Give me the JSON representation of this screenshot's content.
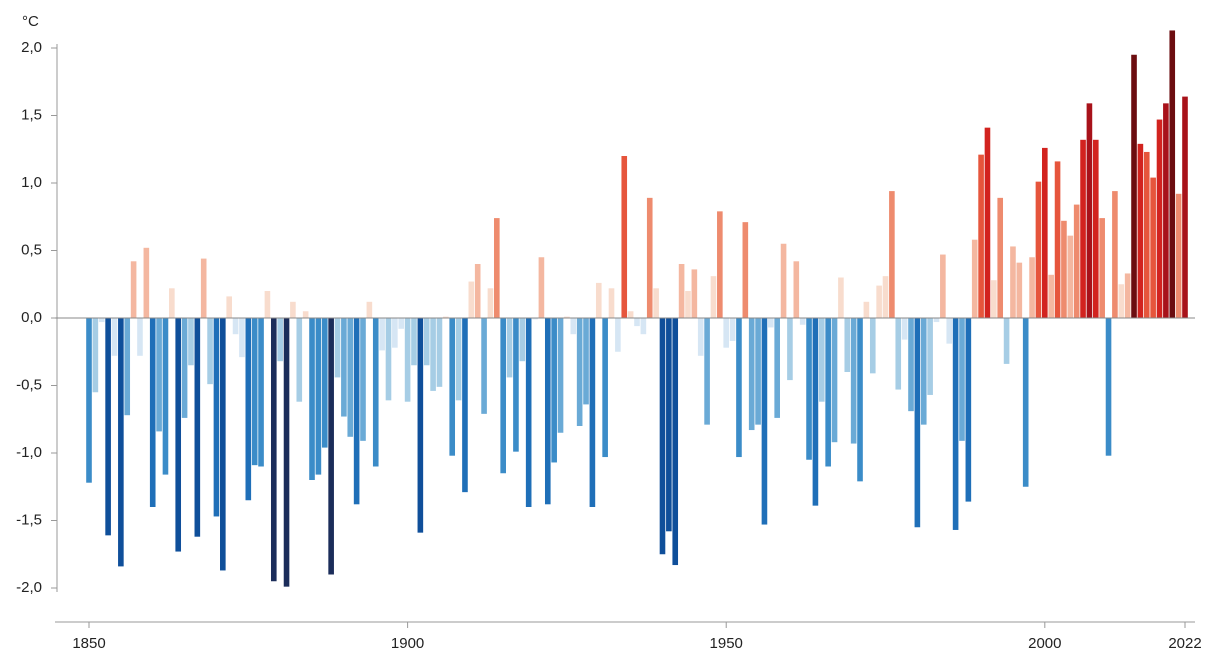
{
  "chart_data": {
    "type": "bar",
    "y_label": "°C",
    "x": [
      1850,
      1851,
      1852,
      1853,
      1854,
      1855,
      1856,
      1857,
      1858,
      1859,
      1860,
      1861,
      1862,
      1863,
      1864,
      1865,
      1866,
      1867,
      1868,
      1869,
      1870,
      1871,
      1872,
      1873,
      1874,
      1875,
      1876,
      1877,
      1878,
      1879,
      1880,
      1881,
      1882,
      1883,
      1884,
      1885,
      1886,
      1887,
      1888,
      1889,
      1890,
      1891,
      1892,
      1893,
      1894,
      1895,
      1896,
      1897,
      1898,
      1899,
      1900,
      1901,
      1902,
      1903,
      1904,
      1905,
      1906,
      1907,
      1908,
      1909,
      1910,
      1911,
      1912,
      1913,
      1914,
      1915,
      1916,
      1917,
      1918,
      1919,
      1920,
      1921,
      1922,
      1923,
      1924,
      1925,
      1926,
      1927,
      1928,
      1929,
      1930,
      1931,
      1932,
      1933,
      1934,
      1935,
      1936,
      1937,
      1938,
      1939,
      1940,
      1941,
      1942,
      1943,
      1944,
      1945,
      1946,
      1947,
      1948,
      1949,
      1950,
      1951,
      1952,
      1953,
      1954,
      1955,
      1956,
      1957,
      1958,
      1959,
      1960,
      1961,
      1962,
      1963,
      1964,
      1965,
      1966,
      1967,
      1968,
      1969,
      1970,
      1971,
      1972,
      1973,
      1974,
      1975,
      1976,
      1977,
      1978,
      1979,
      1980,
      1981,
      1982,
      1983,
      1984,
      1985,
      1986,
      1987,
      1988,
      1989,
      1990,
      1991,
      1992,
      1993,
      1994,
      1995,
      1996,
      1997,
      1998,
      1999,
      2000,
      2001,
      2002,
      2003,
      2004,
      2005,
      2006,
      2007,
      2008,
      2009,
      2010,
      2011,
      2012,
      2013,
      2014,
      2015,
      2016,
      2017,
      2018,
      2019,
      2020,
      2021,
      2022
    ],
    "values": [
      -1.22,
      -0.55,
      -0.03,
      -1.61,
      -0.28,
      -1.84,
      -0.72,
      0.42,
      -0.28,
      0.52,
      -1.4,
      -0.84,
      -1.16,
      0.22,
      -1.73,
      -0.74,
      -0.35,
      -1.62,
      0.44,
      -0.49,
      -1.47,
      -1.87,
      0.16,
      -0.12,
      -0.29,
      -1.35,
      -1.09,
      -1.1,
      0.2,
      -1.95,
      -0.32,
      -1.99,
      0.12,
      -0.62,
      0.05,
      -1.2,
      -1.16,
      -0.96,
      -1.9,
      -0.44,
      -0.73,
      -0.88,
      -1.38,
      -0.91,
      0.12,
      -1.1,
      -0.24,
      -0.61,
      -0.22,
      -0.08,
      -0.62,
      -0.35,
      -1.59,
      -0.35,
      -0.54,
      -0.51,
      0.01,
      -1.02,
      -0.61,
      -1.29,
      0.27,
      0.4,
      -0.71,
      0.22,
      0.74,
      -1.15,
      -0.44,
      -0.99,
      -0.32,
      -1.4,
      -0.01,
      0.45,
      -1.38,
      -1.07,
      -0.85,
      0.01,
      -0.12,
      -0.8,
      -0.64,
      -1.4,
      0.26,
      -1.03,
      0.22,
      -0.25,
      1.2,
      0.05,
      -0.06,
      -0.12,
      0.89,
      0.22,
      -1.75,
      -1.58,
      -1.83,
      0.4,
      0.2,
      0.36,
      -0.28,
      -0.79,
      0.31,
      0.79,
      -0.22,
      -0.17,
      -1.03,
      0.71,
      -0.83,
      -0.79,
      -1.53,
      -0.07,
      -0.74,
      0.55,
      -0.46,
      0.42,
      -0.05,
      -1.05,
      -1.39,
      -0.62,
      -1.1,
      -0.92,
      0.3,
      -0.4,
      -0.93,
      -1.21,
      0.12,
      -0.41,
      0.24,
      0.31,
      0.94,
      -0.53,
      -0.16,
      -0.69,
      -1.55,
      -0.79,
      -0.57,
      -0.03,
      0.47,
      -0.19,
      -1.57,
      -0.91,
      -1.36,
      0.58,
      1.21,
      1.41,
      0.28,
      0.89,
      -0.34,
      0.53,
      0.41,
      -1.25,
      0.45,
      1.01,
      1.26,
      0.32,
      1.16,
      0.72,
      0.61,
      0.84,
      1.32,
      1.59,
      1.32,
      0.74,
      -1.02,
      0.94,
      0.25,
      0.33,
      1.95,
      1.29,
      1.23,
      1.04,
      1.47,
      1.59,
      2.13,
      0.92,
      1.64
    ],
    "colors": [
      "#1b2d5a",
      "#0f4f9a",
      "#1f6fb8",
      "#3b8cc8",
      "#6aaad6",
      "#a6cde5",
      "#d6e6f4",
      "#f8dccd",
      "#f4b7a0",
      "#ee8b6e",
      "#e6553c",
      "#d2231f",
      "#a8121a",
      "#6c0d10"
    ],
    "xlim": [
      1850,
      2022
    ],
    "xticks": [
      1850,
      1900,
      1950,
      2000,
      2022
    ],
    "ylim": [
      -2.2,
      2.2
    ],
    "yticks": [
      {
        "value": -2,
        "label": "-2,0"
      },
      {
        "value": -1.5,
        "label": "-1,5"
      },
      {
        "value": -1,
        "label": "-1,0"
      },
      {
        "value": -0.5,
        "label": "-0,5"
      },
      {
        "value": 0,
        "label": "0,0"
      },
      {
        "value": 0.5,
        "label": "0,5"
      },
      {
        "value": 1,
        "label": "1,0"
      },
      {
        "value": 1.5,
        "label": "1,5"
      },
      {
        "value": 2,
        "label": "2,0"
      }
    ]
  }
}
